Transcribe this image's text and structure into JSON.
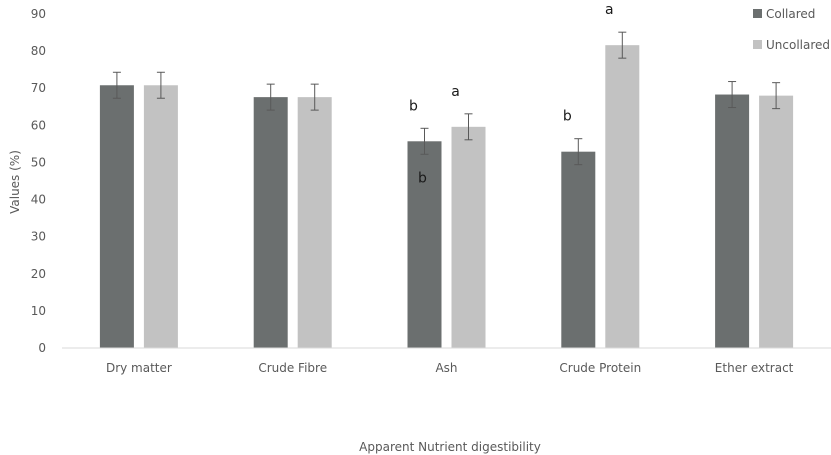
{
  "chart_data": {
    "type": "bar",
    "categories": [
      "Dry matter",
      "Crude Fibre",
      "Ash",
      "Crude Protein",
      "Ether extract"
    ],
    "series": [
      {
        "name": "Collared",
        "color": "#6b6f6f",
        "values": [
          70.8,
          67.6,
          55.7,
          52.9,
          68.3
        ],
        "errors": [
          3.5,
          3.5,
          3.5,
          3.5,
          3.5
        ],
        "letters": [
          "",
          "",
          "b",
          "b",
          ""
        ]
      },
      {
        "name": "Uncollared",
        "color": "#c2c2c2",
        "values": [
          70.8,
          67.6,
          59.6,
          81.6,
          68.0
        ],
        "errors": [
          3.5,
          3.5,
          3.5,
          3.5,
          3.5
        ],
        "letters": [
          "",
          "",
          "a",
          "a",
          ""
        ]
      }
    ],
    "ylim": [
      0,
      90
    ],
    "yticks": [
      0,
      10,
      20,
      30,
      40,
      50,
      60,
      70,
      80,
      90
    ],
    "ylabel": "Values (%)",
    "xlabel": "Apparent Nutrient digestibility",
    "extra_annotations": [
      {
        "category": "Ash",
        "series": "Collared",
        "value": 46,
        "text": "b"
      }
    ],
    "legend_position": "top-right",
    "grid": false
  }
}
